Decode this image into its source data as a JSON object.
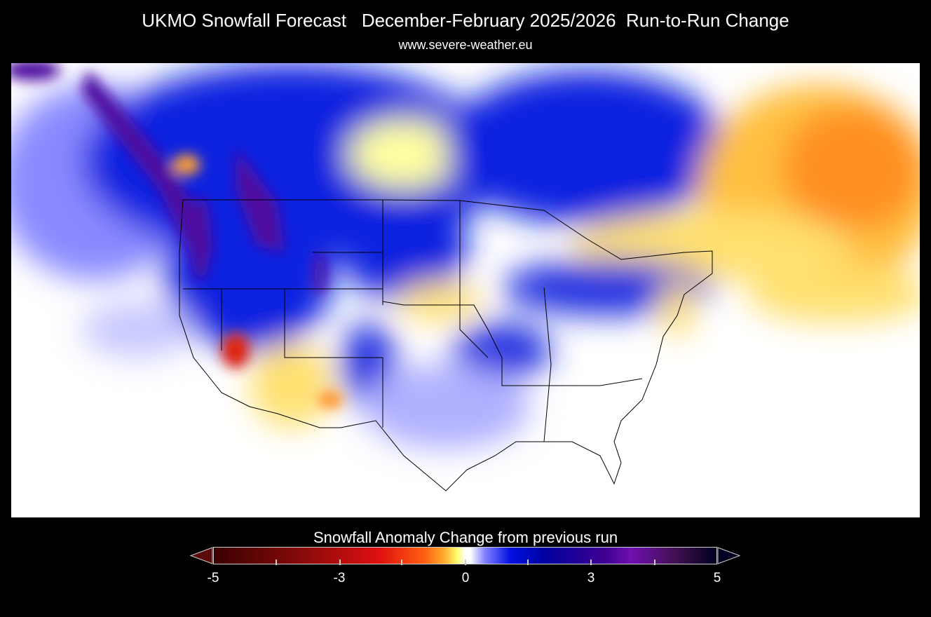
{
  "header": {
    "title": "UKMO Snowfall Forecast   December-February 2025/2026  Run-to-Run Change",
    "subtitle": "www.severe-weather.eu"
  },
  "map": {
    "region": "North America (CONUS and southern Canada)",
    "field": "Snowfall anomaly change",
    "colors": {
      "decrease": "#ff6010",
      "strong_decrease": "#e01010",
      "neutral": "#ffffff",
      "increase": "#0010e0",
      "strong_increase": "#7010b0"
    }
  },
  "colorbar": {
    "title": "Snowfall Anomaly Change from previous run",
    "min": -5,
    "max": 5,
    "tick_labels": [
      "-5",
      "-3",
      "0",
      "3",
      "5"
    ],
    "extend": "both"
  }
}
